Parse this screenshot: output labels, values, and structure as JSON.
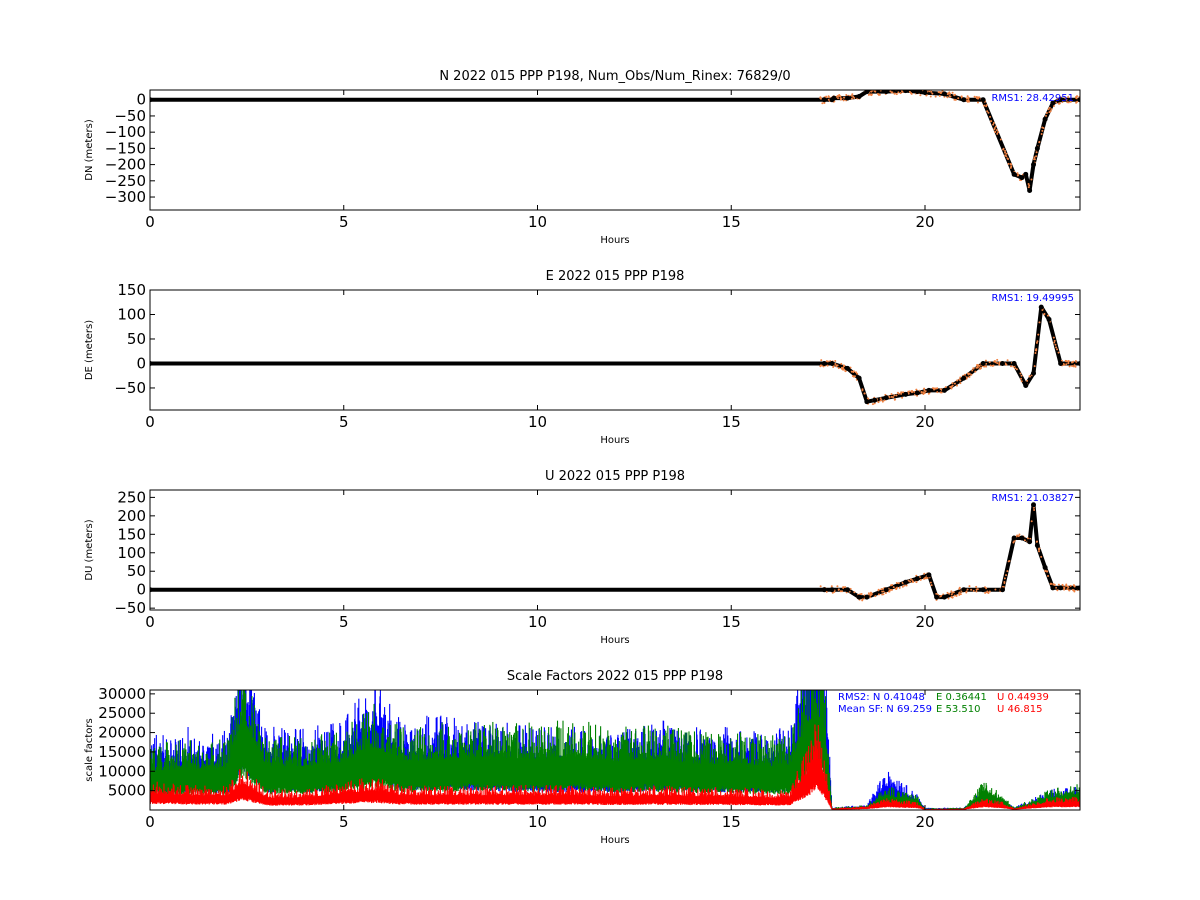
{
  "colors": {
    "data": "#000000",
    "fit": "#f08040",
    "n": "#0000ff",
    "e": "#008000",
    "u": "#ff0000",
    "rms": "#0000ff"
  },
  "chart_data": [
    {
      "type": "scatter",
      "title": "N 2022 015 PPP  P198, Num_Obs/Num_Rinex: 76829/0",
      "xlabel": "Hours",
      "ylabel": "DN (meters)",
      "xlim": [
        0,
        24
      ],
      "ylim": [
        -340,
        30
      ],
      "xticks": [
        0,
        5,
        10,
        15,
        20
      ],
      "yticks": [
        0,
        -50,
        -100,
        -150,
        -200,
        -250,
        -300
      ],
      "annotation": "RMS1: 28.42951",
      "x": [
        0,
        17.4,
        17.6,
        17.65,
        18.0,
        18.3,
        18.5,
        19.0,
        19.5,
        19.8,
        20.0,
        20.5,
        21.0,
        21.5,
        22.3,
        22.5,
        22.6,
        22.7,
        22.8,
        22.9,
        23.1,
        23.3,
        23.5,
        24.0
      ],
      "y": [
        0,
        0,
        0,
        5,
        5,
        10,
        25,
        25,
        28,
        25,
        22,
        18,
        0,
        0,
        -230,
        -240,
        -230,
        -280,
        -200,
        -150,
        -60,
        -10,
        0,
        0
      ]
    },
    {
      "type": "scatter",
      "title": "E 2022 015 PPP  P198",
      "xlabel": "Hours",
      "ylabel": "DE (meters)",
      "xlim": [
        0,
        24
      ],
      "ylim": [
        -95,
        150
      ],
      "xticks": [
        0,
        5,
        10,
        15,
        20
      ],
      "yticks": [
        150,
        100,
        50,
        0,
        -50
      ],
      "annotation": "RMS1: 19.49995",
      "x": [
        0,
        17.4,
        17.6,
        18.0,
        18.3,
        18.5,
        18.7,
        19.0,
        19.5,
        19.8,
        20.1,
        20.5,
        21.0,
        21.5,
        22.0,
        22.3,
        22.6,
        22.8,
        23.0,
        23.2,
        23.5,
        24.0
      ],
      "y": [
        0,
        0,
        0,
        -10,
        -30,
        -78,
        -75,
        -70,
        -63,
        -60,
        -55,
        -55,
        -30,
        0,
        0,
        0,
        -45,
        -20,
        115,
        90,
        0,
        0
      ]
    },
    {
      "type": "scatter",
      "title": "U 2022 015 PPP  P198",
      "xlabel": "Hours",
      "ylabel": "DU (meters)",
      "xlim": [
        0,
        24
      ],
      "ylim": [
        -55,
        270
      ],
      "xticks": [
        0,
        5,
        10,
        15,
        20
      ],
      "yticks": [
        250,
        200,
        150,
        100,
        50,
        0,
        -50
      ],
      "annotation": "RMS1: 21.03827",
      "x": [
        0,
        17.4,
        17.6,
        18.0,
        18.3,
        18.5,
        19.0,
        19.5,
        19.8,
        20.1,
        20.3,
        20.5,
        21.0,
        21.5,
        22.0,
        22.3,
        22.5,
        22.7,
        22.8,
        22.9,
        23.1,
        23.3,
        23.5,
        24.0
      ],
      "y": [
        0,
        0,
        0,
        0,
        -20,
        -20,
        0,
        20,
        30,
        40,
        -20,
        -20,
        0,
        0,
        0,
        140,
        140,
        130,
        230,
        120,
        60,
        5,
        5,
        5
      ]
    },
    {
      "type": "scatter",
      "title": "Scale Factors 2022 015 PPP  P198",
      "xlabel": "Hours",
      "ylabel": "scale factors",
      "xlim": [
        0,
        24
      ],
      "ylim": [
        0,
        31000
      ],
      "xticks": [
        0,
        5,
        10,
        15,
        20
      ],
      "yticks": [
        30000,
        25000,
        20000,
        15000,
        10000,
        5000
      ],
      "annotation_rms2": {
        "label": "RMS2: N  0.41048",
        "e": "E  0.36441",
        "u": "U  0.44939"
      },
      "annotation_mean": {
        "label": "Mean SF: N  69.259",
        "e": "E  53.510",
        "u": "U  46.815"
      },
      "series": [
        {
          "values_x": [
            0,
            1,
            2,
            2.4,
            3,
            4,
            5,
            5.8,
            6.5,
            7.5,
            8.5,
            10,
            11,
            12,
            13,
            14,
            15,
            16,
            16.5,
            17.0,
            17.2,
            17.4,
            17.6,
            18.5,
            19.0,
            19.8,
            20.0,
            21.0,
            21.5,
            22.0,
            22.3,
            23.2,
            24.0
          ],
          "values_y": [
            9000,
            10000,
            9500,
            20000,
            10000,
            10000,
            11000,
            17000,
            11000,
            11500,
            11000,
            10000,
            10000,
            9500,
            11000,
            10000,
            10000,
            10000,
            10000,
            23000,
            28000,
            22000,
            300,
            700,
            5000,
            2000,
            300,
            300,
            2500,
            1500,
            300,
            2500,
            3000
          ]
        },
        {
          "values_x": [
            0,
            1,
            2,
            2.4,
            3,
            4,
            5,
            5.8,
            6.5,
            7.5,
            8.5,
            10,
            11,
            12,
            13,
            14,
            15,
            16,
            16.5,
            17.0,
            17.2,
            17.4,
            17.6,
            18.5,
            19.0,
            19.8,
            20.0,
            21.0,
            21.5,
            22.0,
            22.3,
            23.2,
            24.0
          ],
          "values_y": [
            8000,
            8500,
            8500,
            19000,
            9000,
            9000,
            10000,
            13000,
            10000,
            10500,
            11000,
            10500,
            11000,
            10000,
            10500,
            9500,
            9500,
            9000,
            9000,
            18000,
            20000,
            17000,
            300,
            600,
            3000,
            1800,
            200,
            300,
            3500,
            2000,
            300,
            2500,
            3200
          ]
        },
        {
          "values_x": [
            0,
            1,
            2,
            2.4,
            3,
            4,
            5,
            5.8,
            6.5,
            7.5,
            8.5,
            10,
            11,
            12,
            13,
            14,
            15,
            16,
            16.5,
            17.0,
            17.2,
            17.4,
            17.6,
            18.5,
            19.0,
            19.8,
            20.0,
            21.0,
            21.5,
            22.0,
            22.3,
            23.2,
            24.0
          ],
          "values_y": [
            3500,
            3000,
            3000,
            5500,
            2500,
            2500,
            3500,
            4000,
            3000,
            3000,
            3000,
            3000,
            3000,
            2800,
            3000,
            2800,
            2800,
            2500,
            2500,
            8000,
            12000,
            7000,
            200,
            500,
            1500,
            1000,
            150,
            200,
            1500,
            1000,
            200,
            1500,
            1600
          ]
        }
      ]
    }
  ]
}
